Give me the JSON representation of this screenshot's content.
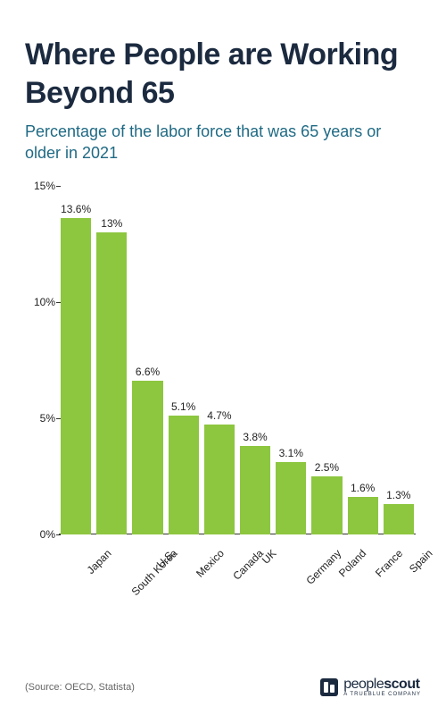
{
  "title": "Where People are Working Beyond 65",
  "subtitle": "Percentage of the labor force that was 65 years or older in 2021",
  "chart": {
    "type": "bar",
    "ymax": 15,
    "yticks": [
      0,
      5,
      10,
      15
    ],
    "ytick_labels": [
      "0%",
      "5%",
      "10%",
      "15%"
    ],
    "bar_color": "#8dc63f",
    "background_color": "#ffffff",
    "axis_color": "#333333",
    "label_color": "#222222",
    "label_fontsize": 12,
    "xlabel_rotation": -45,
    "data": [
      {
        "label": "Japan",
        "value": 13.6,
        "display": "13.6%"
      },
      {
        "label": "South Korea",
        "value": 13.0,
        "display": "13%"
      },
      {
        "label": "U.S.",
        "value": 6.6,
        "display": "6.6%"
      },
      {
        "label": "Mexico",
        "value": 5.1,
        "display": "5.1%"
      },
      {
        "label": "Canada",
        "value": 4.7,
        "display": "4.7%"
      },
      {
        "label": "UK",
        "value": 3.8,
        "display": "3.8%"
      },
      {
        "label": "Germany",
        "value": 3.1,
        "display": "3.1%"
      },
      {
        "label": "Poland",
        "value": 2.5,
        "display": "2.5%"
      },
      {
        "label": "France",
        "value": 1.6,
        "display": "1.6%"
      },
      {
        "label": "Spain",
        "value": 1.3,
        "display": "1.3%"
      }
    ]
  },
  "source": "(Source: OECD, Statista)",
  "brand": {
    "name_a": "people",
    "name_b": "scout",
    "tagline": "A TRUEBLUE COMPANY",
    "color": "#1b2a3f"
  },
  "typography": {
    "title_color": "#1b2a3f",
    "title_fontsize": 34,
    "subtitle_color": "#1f6a84",
    "subtitle_fontsize": 18,
    "source_color": "#666666",
    "source_fontsize": 11
  }
}
